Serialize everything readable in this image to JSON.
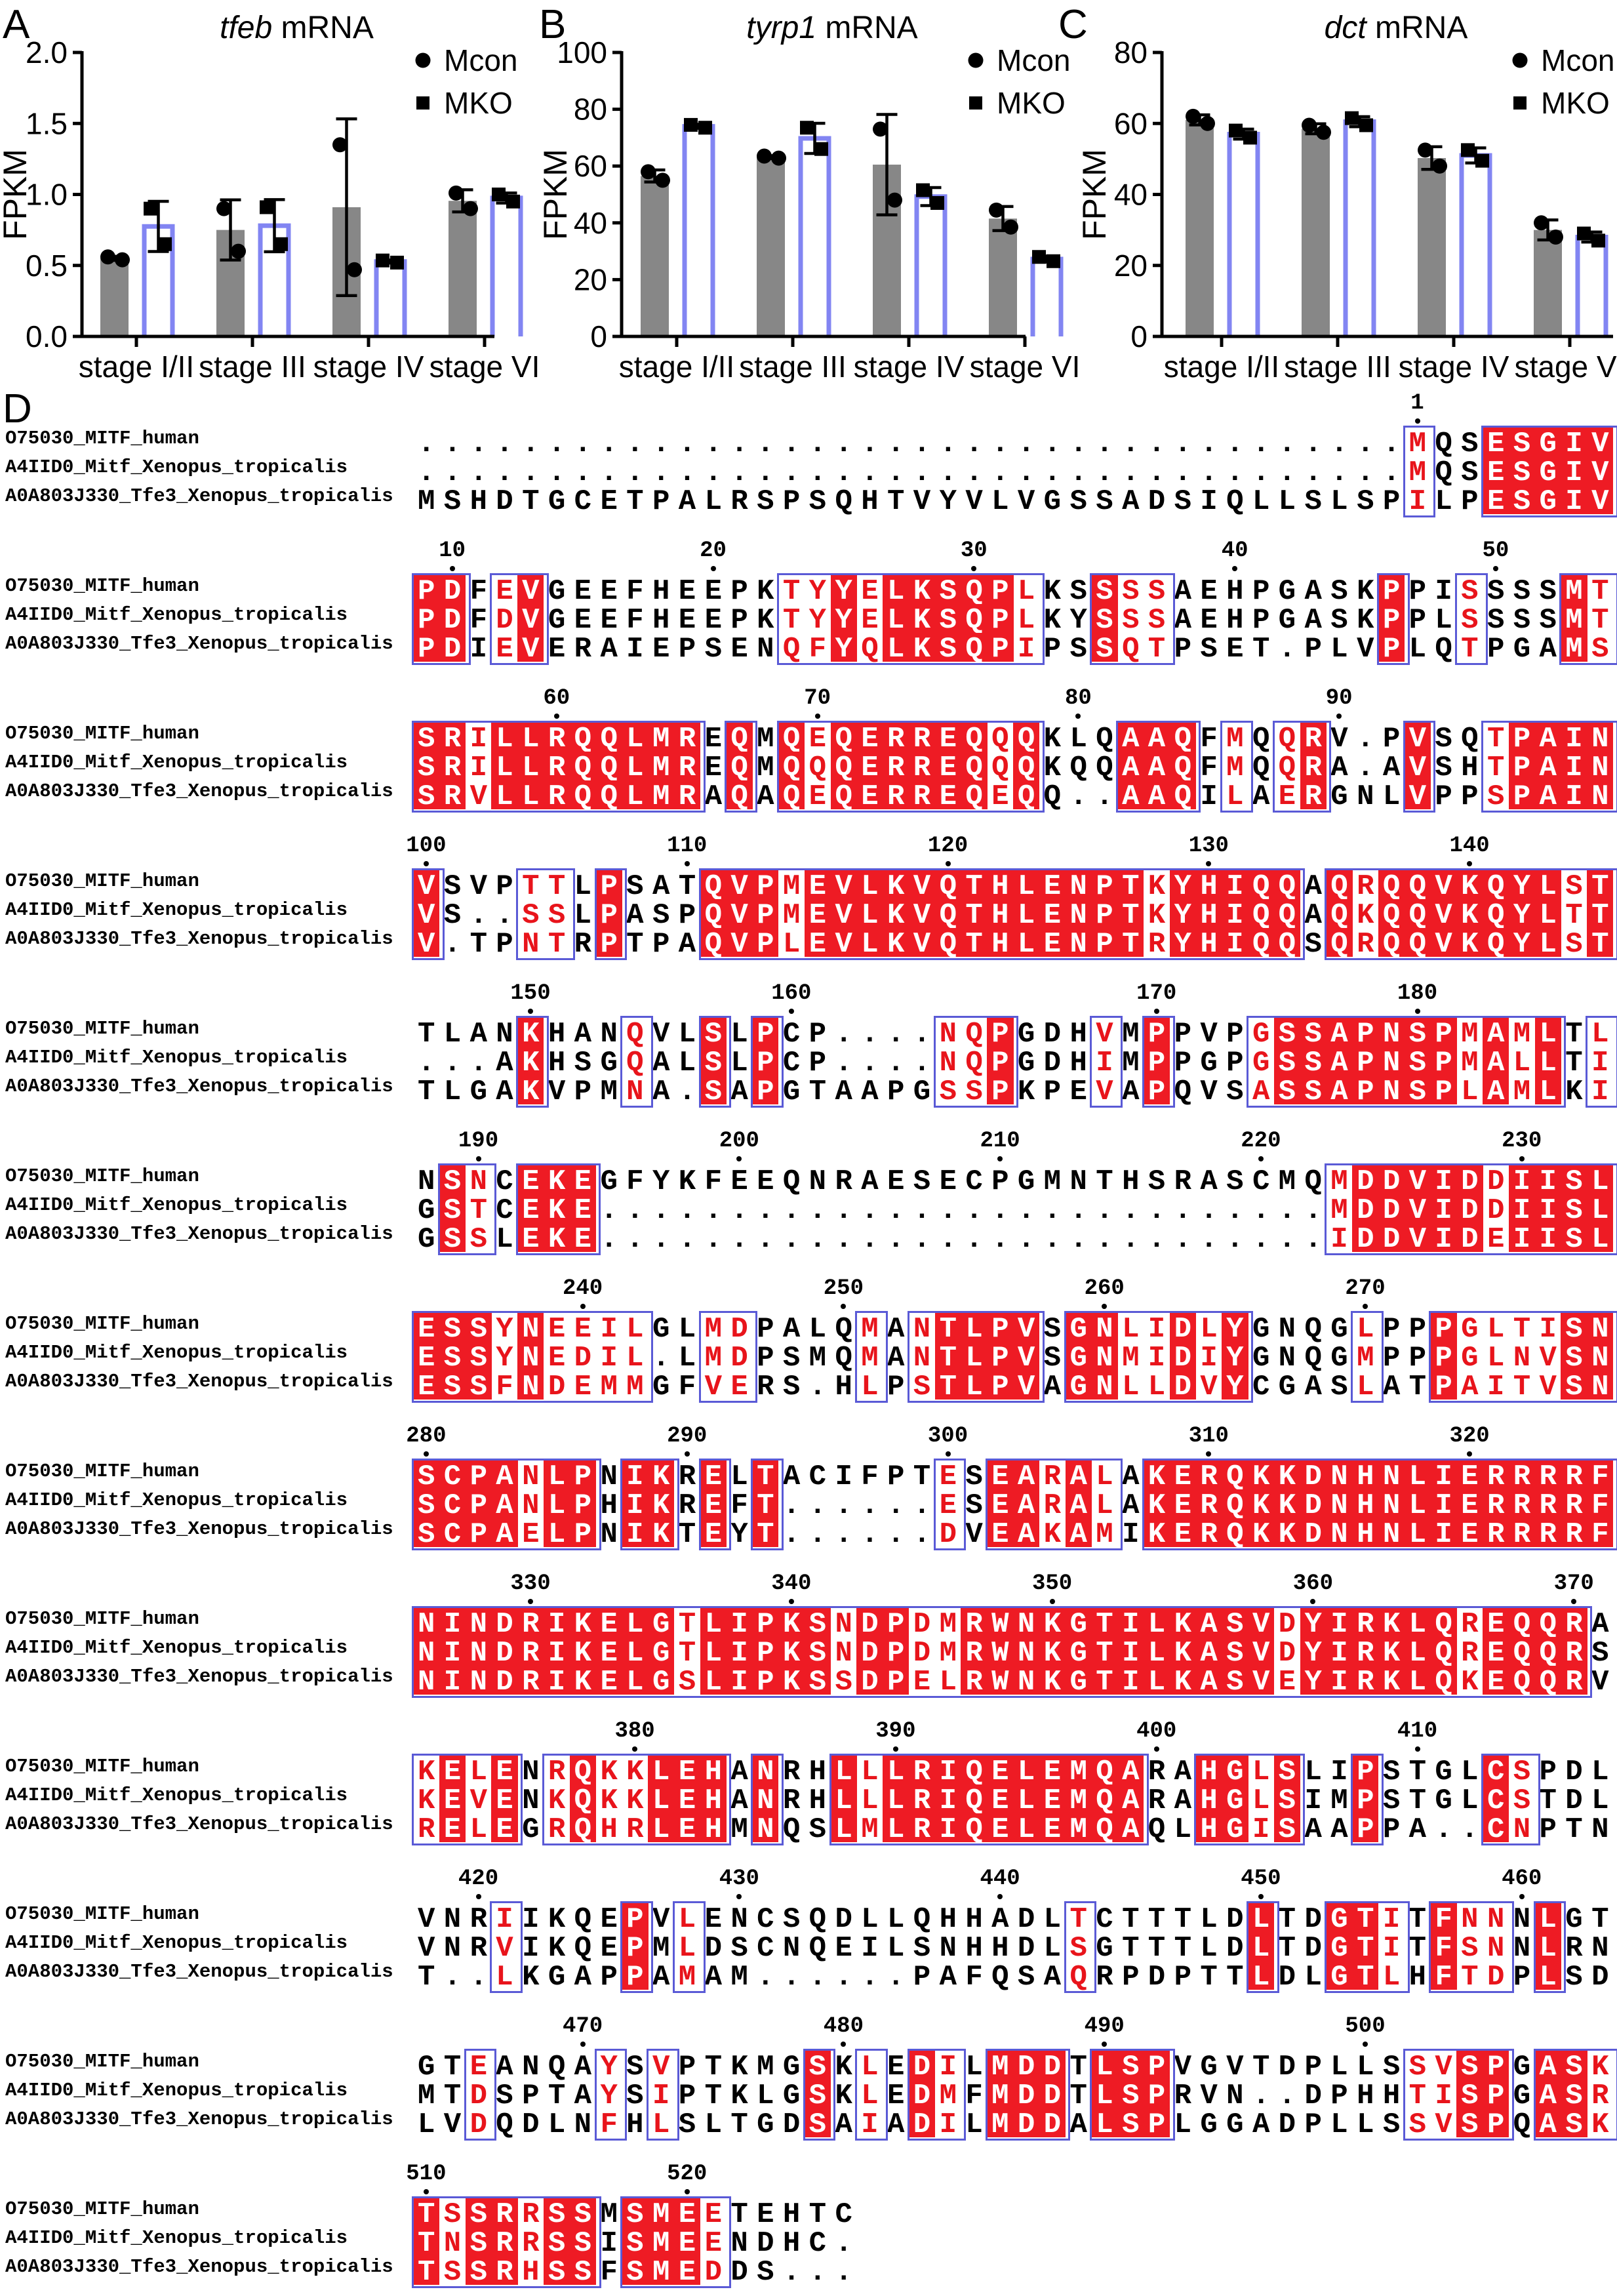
{
  "panels": {
    "a": {
      "letter": "A"
    },
    "b": {
      "letter": "B"
    },
    "c": {
      "letter": "C"
    },
    "d": {
      "letter": "D"
    }
  },
  "colors": {
    "mcon_bar": "#878787",
    "mko_outline": "#8285F2",
    "marker": "#000000",
    "conserved_bg": "#EE1B24",
    "similar_text": "#E8141B",
    "box_border": "#5A5AD6"
  },
  "chart_data": [
    {
      "panel": "A",
      "type": "bar",
      "title_gene": "tfeb",
      "title_suffix": " mRNA",
      "ylabel": "FPKM",
      "ylim": [
        0,
        2
      ],
      "ytick_values": [
        0,
        0.5,
        1,
        1.5,
        2
      ],
      "ytick_labels": [
        "0.0",
        "0.5",
        "1.0",
        "1.5",
        "2.0"
      ],
      "categories": [
        "stage I/II",
        "stage III",
        "stage IV",
        "stage VI"
      ],
      "legend": [
        {
          "label": "Mcon",
          "marker": "circle"
        },
        {
          "label": "MKO",
          "marker": "square"
        }
      ],
      "series": [
        {
          "name": "Mcon",
          "marker": "circle",
          "bar_style": "gray",
          "points": [
            [
              0.56,
              0.54
            ],
            [
              0.9,
              0.6
            ],
            [
              1.35,
              0.47
            ],
            [
              1.01,
              0.9
            ]
          ]
        },
        {
          "name": "MKO",
          "marker": "square",
          "bar_style": "outline",
          "points": [
            [
              0.9,
              0.65
            ],
            [
              0.91,
              0.65
            ],
            [
              0.535,
              0.52
            ],
            [
              1.0,
              0.95
            ]
          ]
        }
      ]
    },
    {
      "panel": "B",
      "type": "bar",
      "title_gene": "tyrp1",
      "title_suffix": " mRNA",
      "ylabel": "FPKM",
      "ylim": [
        0,
        100
      ],
      "ytick_values": [
        0,
        20,
        40,
        60,
        80,
        100
      ],
      "ytick_labels": [
        "0",
        "20",
        "40",
        "60",
        "80",
        "100"
      ],
      "categories": [
        "stage I/II",
        "stage III",
        "stage IV",
        "stage VI"
      ],
      "legend": [
        {
          "label": "Mcon",
          "marker": "circle"
        },
        {
          "label": "MKO",
          "marker": "square"
        }
      ],
      "series": [
        {
          "name": "Mcon",
          "marker": "circle",
          "bar_style": "gray",
          "points": [
            [
              58,
              55
            ],
            [
              63.5,
              62.8
            ],
            [
              73,
              48
            ],
            [
              44.5,
              38.5
            ]
          ]
        },
        {
          "name": "MKO",
          "marker": "square",
          "bar_style": "outline",
          "points": [
            [
              74.5,
              73.5
            ],
            [
              73.5,
              66
            ],
            [
              51.5,
              47
            ],
            [
              28,
              26.5
            ]
          ]
        }
      ]
    },
    {
      "panel": "C",
      "type": "bar",
      "title_gene": "dct",
      "title_suffix": " mRNA",
      "ylabel": "FPKM",
      "ylim": [
        0,
        80
      ],
      "ytick_values": [
        0,
        20,
        40,
        60,
        80
      ],
      "ytick_labels": [
        "0",
        "20",
        "40",
        "60",
        "80"
      ],
      "categories": [
        "stage I/II",
        "stage III",
        "stage IV",
        "stage VI"
      ],
      "legend": [
        {
          "label": "Mcon",
          "marker": "circle"
        },
        {
          "label": "MKO",
          "marker": "square"
        }
      ],
      "series": [
        {
          "name": "Mcon",
          "marker": "circle",
          "bar_style": "gray",
          "points": [
            [
              62,
              60
            ],
            [
              59.5,
              57.5
            ],
            [
              52.5,
              48
            ],
            [
              32,
              28
            ]
          ]
        },
        {
          "name": "MKO",
          "marker": "square",
          "bar_style": "outline",
          "points": [
            [
              58,
              56
            ],
            [
              61.5,
              59.5
            ],
            [
              52.5,
              49.5
            ],
            [
              29,
              27
            ]
          ]
        }
      ]
    }
  ],
  "alignment": {
    "names": [
      "O75030_MITF_human",
      "A4IID0_Mitf_Xenopus_tropicalis",
      "A0A803J330_Tfe3_Xenopus_tropicalis"
    ],
    "blocks": [
      [
        "......................................MQSESGIV",
        "......................................MQSESGIV",
        "MSHDTGCETPALRSPSQHTVYVLVGSSADSIQLLSLSPILPESGIV"
      ],
      [
        "PDFEVGEEFHEEPKTYYELKSQPLKSSSSAEHPGASKPPISSSSMT",
        "PDFDVGEEFHEEPKTYYELKSQPLKYSSSAEHPGASKPPLSSSSMT",
        "PDIEVERAIEPSENQFYQLKSQPIPSSQTPSET.PLVPLQTPGAMS"
      ],
      [
        "SRILLRQQLMREQMQEQERREQQQKLQAAQFMQQRV.PVSQTPAIN",
        "SRILLRQQLMREQMQQQERREQQQKQQAAQFMQQRA.AVSHTPAIN",
        "SRVLLRQQLMRAQAQEQERREQEQQ..AAQILAERGNLVPPSPAIN"
      ],
      [
        "VSVPTTLPSATQVPMEVLKVQTHLENPTKYHIQQAQRQQVKQYLST",
        "VS..SSLPASPQVPMEVLKVQTHLENPTKYHIQQAQKQQVKQYLTT",
        "V.TPNTRPTPAQVPLEVLKVQTHLENPTRYHIQQSQRQQVKQYLST"
      ],
      [
        "TLANKHANQVLSLPCP....NQPGDHVMPPVPGSSAPNSPMAMLTL",
        "...AKHSGQALSLPCP....NQPGDHIMPPGPGSSAPNSPMALLTI",
        "TLGAKVPMNA.SAPGTAAPGSSPKPEVAPQVSASSAPNSPLAMLKI"
      ],
      [
        "NSNCEKEGFYKFEEQNRAESECPGMNTHSRASCMQMDDVIDDIISL",
        "GSTCEKE............................MDDVIDDIISL",
        "GSSLEKE............................IDDVIDEIISL"
      ],
      [
        "ESSYNEEILGLMDPALQMANTLPVSGNLIDLYGNQGLPPPGLTISN",
        "ESSYNEDIL.LMDPSMQMANTLPVSGNMIDIYGNQGMPPPGLNVSN",
        "ESSFNDEMMGFVERS.HLPSTLPVAGNLLDVYCGASLATPAITVSN"
      ],
      [
        "SCPANLPNIKRELTACIFPTESEARALAKERQKKDNHNLIERRRRF",
        "SCPANLPHIKREFT......ESEARALAKERQKKDNHNLIERRRRF",
        "SCPAELPNIKTEYT......DVEAKAMIKERQKKDNHNLIERRRRF"
      ],
      [
        "NINDRIKELGTLIPKSNDPDMRWNKGTILKASVDYIRKLQREQQRA",
        "NINDRIKELGTLIPKSNDPDMRWNKGTILKASVDYIRKLQREQQRS",
        "NINDRIKELGSLIPKSSDPELRWNKGTILKASVEYIRKLQKEQQRV"
      ],
      [
        "KELENRQKKLEHANRHLLLRIQELEMQARAHGLSLIPSTGLCSPDL",
        "KEVENKQKKLEHANRHLLLRIQELEMQARAHGLSIMPSTGLCSTDL",
        "RELEGRQHRLEHMNQSLMLRIQELEMQAQLHGISAAPPA..CNPTN"
      ],
      [
        "VNRIIKQEPVLENCSQDLLQHHADLTCTTTLDLTDGTITFNNNLGT",
        "VNRVIKQEPMLDSCNQEILSNHHDLSGTTTLDLTDGTITFSNNLRN",
        "T..LKGAPPAMAM......PAFQSAQRPDPTTLDLGTLHFTDPLSD"
      ],
      [
        "GTEANQAYSVPTKMGSKLEDILMDDTLSPVGVTDPLLSSVSPGASK",
        "MTDSPTAYSIPTKLGSKLEDMFMDDTLSPRVN..DPHHTISPGASR",
        "LVDQDLNFHLSLTGDSAIADILMDDALSPLGGADPLLSSVSPQASK"
      ],
      [
        "TSSRRSSMSMEETEHTC",
        "TNSRRSSISMEENDHC.",
        "TSSRHSSFSMEDDS..."
      ]
    ]
  }
}
